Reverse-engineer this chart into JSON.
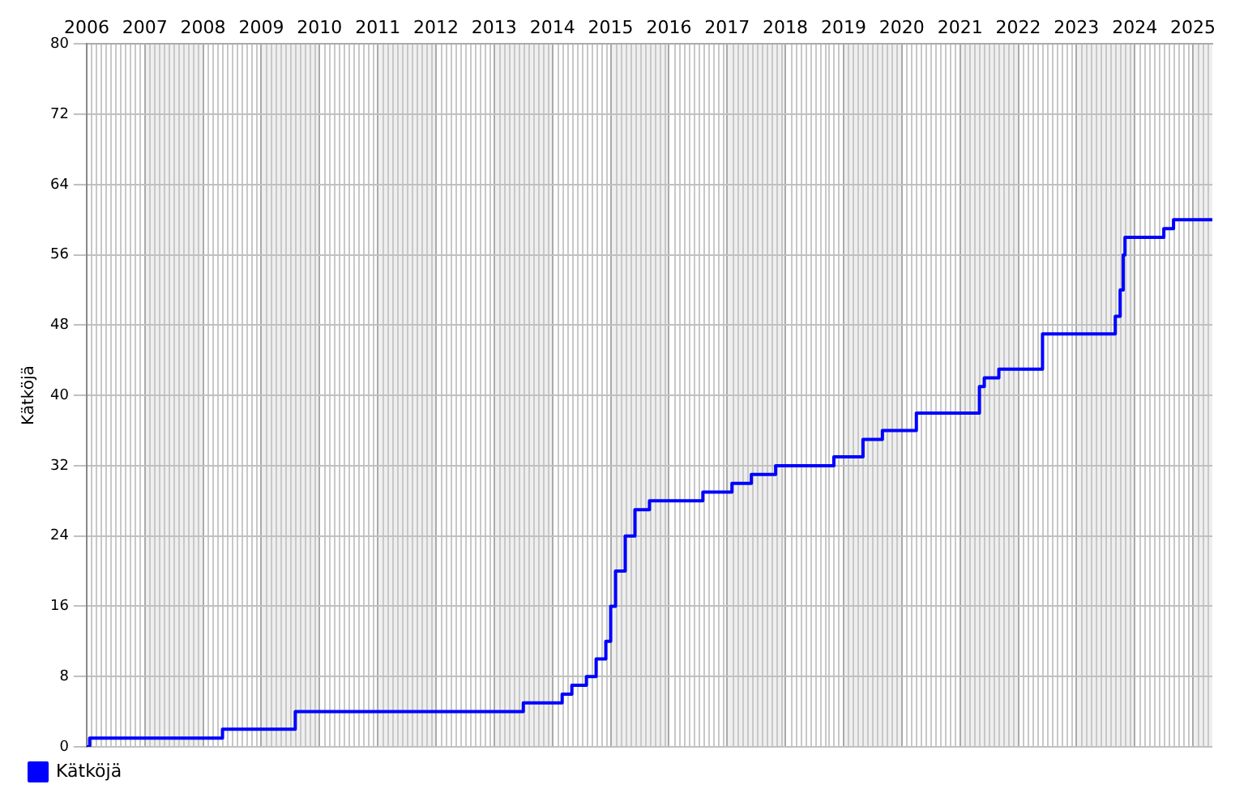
{
  "chart_data": {
    "type": "step",
    "ylabel": "Kätköjä",
    "x": [
      "2006-01",
      "2006-01-20",
      "2008-05",
      "2009-08",
      "2013-07",
      "2014-03",
      "2014-05",
      "2014-08",
      "2014-10",
      "2014-12",
      "2015-01",
      "2015-02",
      "2015-04",
      "2015-06",
      "2015-09",
      "2016-08",
      "2017-02",
      "2017-06",
      "2017-11",
      "2018-11",
      "2019-05",
      "2019-09",
      "2020-04",
      "2021-05",
      "2021-06",
      "2021-09",
      "2022-06",
      "2023-09",
      "2023-10",
      "2023-10-20",
      "2023-11",
      "2024-07",
      "2024-09",
      "2025-05"
    ],
    "series": [
      {
        "name": "Kätköjä",
        "color": "#0000ff",
        "values": [
          0,
          1,
          2,
          4,
          5,
          6,
          7,
          8,
          10,
          12,
          16,
          20,
          24,
          27,
          28,
          29,
          30,
          31,
          32,
          33,
          35,
          36,
          38,
          41,
          42,
          43,
          47,
          49,
          52,
          56,
          58,
          59,
          60,
          60
        ]
      }
    ],
    "xlim": [
      "2006",
      "2025-05"
    ],
    "xticks": [
      "2006",
      "2007",
      "2008",
      "2009",
      "2010",
      "2011",
      "2012",
      "2013",
      "2014",
      "2015",
      "2016",
      "2017",
      "2018",
      "2019",
      "2020",
      "2021",
      "2022",
      "2023",
      "2024",
      "2025"
    ],
    "ylim": [
      0,
      80
    ],
    "yticks": [
      0,
      8,
      16,
      24,
      32,
      40,
      48,
      56,
      64,
      72,
      80
    ],
    "grid": true,
    "legend": "bottom left",
    "marker": "none",
    "line_style": "solid"
  }
}
